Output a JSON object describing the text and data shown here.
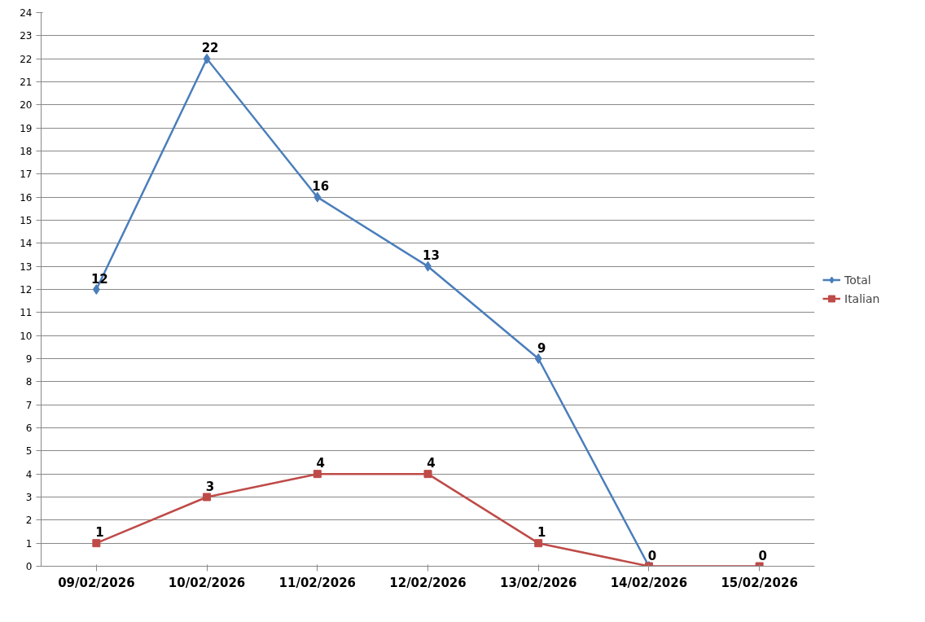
{
  "chart_data": {
    "type": "line",
    "categories": [
      "09/02/2026",
      "10/02/2026",
      "11/02/2026",
      "12/02/2026",
      "13/02/2026",
      "14/02/2026",
      "15/02/2026"
    ],
    "series": [
      {
        "name": "Total",
        "color": "#4a7ebb",
        "marker": "diamond",
        "values": [
          12,
          22,
          16,
          13,
          9,
          0,
          null
        ],
        "value_labels": [
          "12",
          "22",
          "16",
          "13",
          "9",
          null,
          null
        ]
      },
      {
        "name": "Italian",
        "color": "#be4b48",
        "marker": "square",
        "values": [
          1,
          3,
          4,
          4,
          1,
          0,
          0
        ],
        "value_labels": [
          "1",
          "3",
          "4",
          "4",
          "1",
          "0",
          "0"
        ]
      }
    ],
    "ylim": [
      0,
      24
    ],
    "yticks": [
      0,
      1,
      2,
      3,
      4,
      5,
      6,
      7,
      8,
      9,
      10,
      11,
      12,
      13,
      14,
      15,
      16,
      17,
      18,
      19,
      20,
      21,
      22,
      23,
      24
    ],
    "grid": "y",
    "legend": "right",
    "line_style": "solid"
  }
}
